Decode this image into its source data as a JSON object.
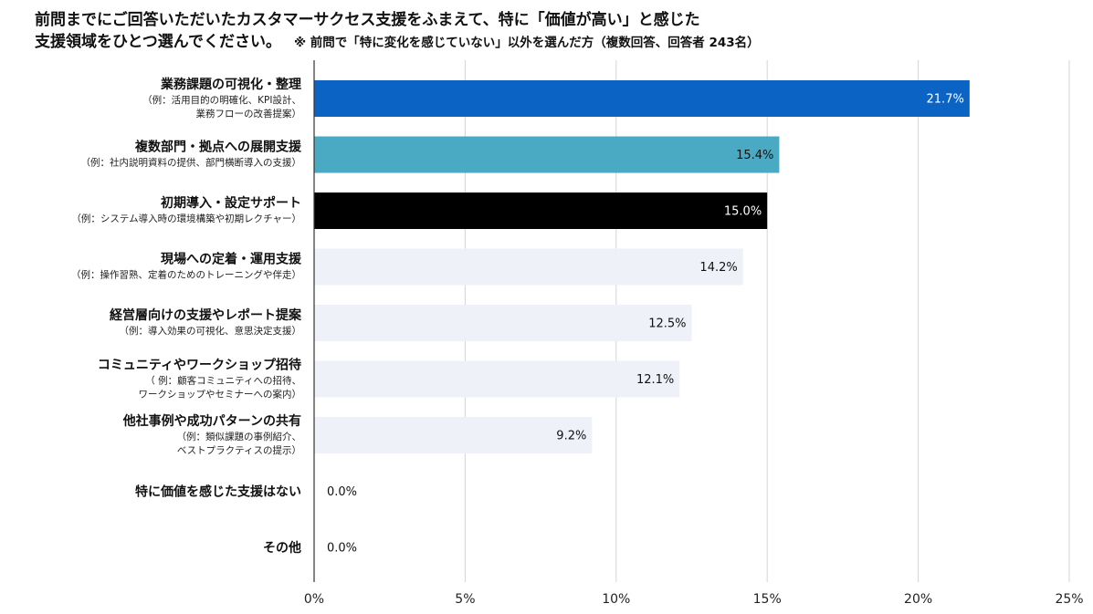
{
  "title": {
    "line1": "前問までにご回答いただいたカスタマーサクセス支援をふまえて、特に「価値が高い」と感じた",
    "line2": "支援領域をひとつ選んでください。",
    "note": "※ 前問で「特に変化を感じていない」以外を選んだ方（複数回答、回答者 243名）"
  },
  "chart_data": {
    "type": "bar",
    "orientation": "horizontal",
    "xlim": [
      0,
      25
    ],
    "xticks": [
      "0%",
      "5%",
      "10%",
      "15%",
      "20%",
      "25%"
    ],
    "grid": true,
    "categories": [
      {
        "label": "業務課題の可視化・整理",
        "sub": [
          "（例：活用目的の明確化、KPI設計、",
          "業務フローの改善提案）"
        ],
        "value": 21.7,
        "value_label": "21.7%",
        "color": "#0b63c4",
        "label_color": "#ffffff"
      },
      {
        "label": "複数部門・拠点への展開支援",
        "sub": [
          "（例：社内説明資料の提供、部門横断導入の支援）"
        ],
        "value": 15.4,
        "value_label": "15.4%",
        "color": "#4aaac4",
        "label_color": "#111111"
      },
      {
        "label": "初期導入・設定サポート",
        "sub": [
          "（例：システム導入時の環境構築や初期レクチャー）"
        ],
        "value": 15.0,
        "value_label": "15.0%",
        "color": "#000000",
        "label_color": "#ffffff"
      },
      {
        "label": "現場への定着・運用支援",
        "sub": [
          "（例：操作習熟、定着のためのトレーニングや伴走）"
        ],
        "value": 14.2,
        "value_label": "14.2%",
        "color": "#eef1f7",
        "label_color": "#111111"
      },
      {
        "label": "経営層向けの支援やレポート提案",
        "sub": [
          "（例：導入効果の可視化、意思決定支援）"
        ],
        "value": 12.5,
        "value_label": "12.5%",
        "color": "#eef1f7",
        "label_color": "#111111"
      },
      {
        "label": "コミュニティやワークショップ招待",
        "sub": [
          "（ 例：顧客コミュニティへの招待、",
          "ワークショップやセミナーへの案内）"
        ],
        "value": 12.1,
        "value_label": "12.1%",
        "color": "#eef1f7",
        "label_color": "#111111"
      },
      {
        "label": "他社事例や成功パターンの共有",
        "sub": [
          "（例：類似課題の事例紹介、",
          "ベストプラクティスの提示）"
        ],
        "value": 9.2,
        "value_label": "9.2%",
        "color": "#eef1f7",
        "label_color": "#111111"
      },
      {
        "label": "特に価値を感じた支援はない",
        "sub": [],
        "value": 0.0,
        "value_label": "0.0%",
        "color": "#eef1f7",
        "label_color": "#111111"
      },
      {
        "label": "その他",
        "sub": [],
        "value": 0.0,
        "value_label": "0.0%",
        "color": "#eef1f7",
        "label_color": "#111111"
      }
    ]
  }
}
